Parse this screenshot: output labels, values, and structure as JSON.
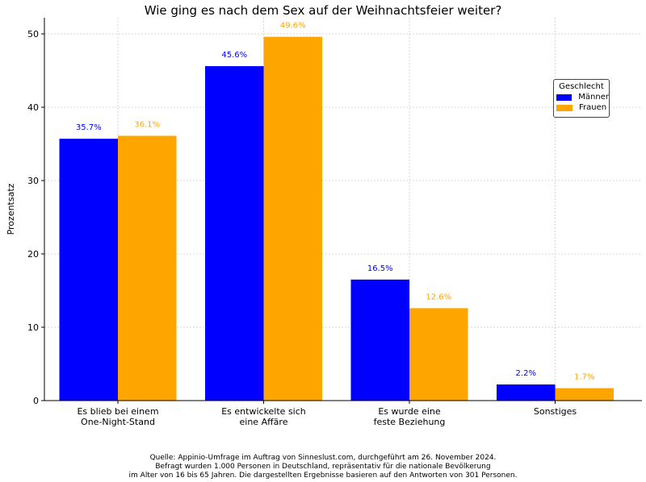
{
  "chart_data": {
    "type": "bar",
    "title": "Wie ging es nach dem Sex auf der Weihnachtsfeier weiter?",
    "xlabel": "",
    "ylabel": "Prozentsatz",
    "categories": [
      "Es blieb bei einem\nOne-Night-Stand",
      "Es entwickelte sich\neine Affäre",
      "Es wurde eine\nfeste Beziehung",
      "Sonstiges"
    ],
    "series": [
      {
        "name": "Männer",
        "values": [
          35.7,
          45.6,
          16.5,
          2.2
        ],
        "color": "#0000ff",
        "labels": [
          "35.7%",
          "45.6%",
          "16.5%",
          "2.2%"
        ]
      },
      {
        "name": "Frauen",
        "values": [
          36.1,
          49.6,
          12.6,
          1.7
        ],
        "color": "#ffa500",
        "labels": [
          "36.1%",
          "49.6%",
          "12.6%",
          "1.7%"
        ]
      }
    ],
    "ylim": [
      0,
      52.2
    ],
    "yticks": [
      0,
      10,
      20,
      30,
      40,
      50
    ],
    "grid": true,
    "legend": {
      "title": "Geschlecht",
      "placement": "right"
    }
  },
  "footer": [
    "Quelle: Appinio-Umfrage im Auftrag von Sinneslust.com, durchgeführt am 26. November 2024.",
    "Befragt wurden 1.000 Personen in Deutschland, repräsentativ für die nationale Bevölkerung",
    "im Alter von 16 bis 65 Jahren. Die dargestellten Ergebnisse basieren auf den Antworten von 301 Personen."
  ]
}
